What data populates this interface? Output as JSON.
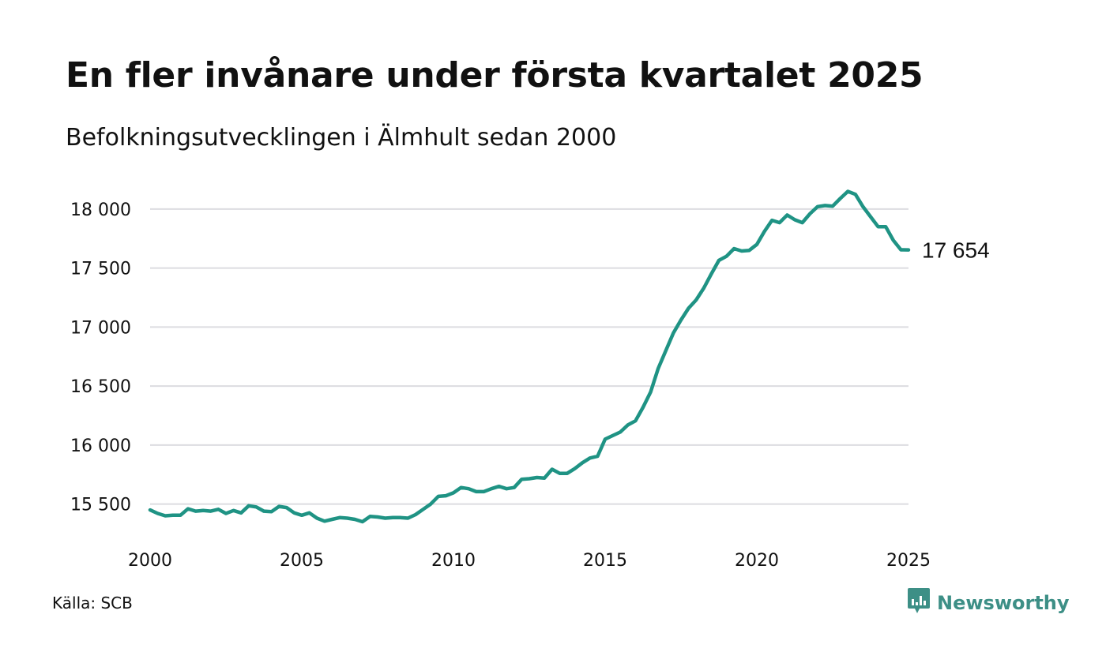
{
  "header": {
    "title": "En fler invånare under första kvartalet 2025",
    "subtitle": "Befolkningsutvecklingen i Älmhult sedan 2000"
  },
  "footer": {
    "source": "Källa: SCB",
    "brand": "Newsworthy",
    "brand_icon": "bar-chart-speech-bubble-icon"
  },
  "colors": {
    "line": "#1f9384",
    "grid": "#dcdce0",
    "brand": "#3d8f86"
  },
  "chart_data": {
    "type": "line",
    "title": "En fler invånare under första kvartalet 2025",
    "subtitle": "Befolkningsutvecklingen i Älmhult sedan 2000",
    "xlabel": "",
    "ylabel": "",
    "xlim": [
      2000,
      2025
    ],
    "ylim": [
      15330,
      18180
    ],
    "x_ticks": [
      2000,
      2005,
      2010,
      2015,
      2020,
      2025
    ],
    "x_tick_labels": [
      "2000",
      "2005",
      "2010",
      "2015",
      "2020",
      "2025"
    ],
    "y_ticks": [
      15500,
      16000,
      16500,
      17000,
      17500,
      18000
    ],
    "y_tick_labels": [
      "15 500",
      "16 000",
      "16 500",
      "17 000",
      "17 500",
      "18 000"
    ],
    "grid": "horizontal",
    "end_label": "17 654",
    "series": [
      {
        "x": [
          2000.0,
          2000.25,
          2000.5,
          2000.75,
          2001.0,
          2001.25,
          2001.5,
          2001.75,
          2002.0,
          2002.25,
          2002.5,
          2002.75,
          2003.0,
          2003.25,
          2003.5,
          2003.75,
          2004.0,
          2004.25,
          2004.5,
          2004.75,
          2005.0,
          2005.25,
          2005.5,
          2005.75,
          2006.0,
          2006.25,
          2006.5,
          2006.75,
          2007.0,
          2007.25,
          2007.5,
          2007.75,
          2008.0,
          2008.25,
          2008.5,
          2008.75,
          2009.0,
          2009.25,
          2009.5,
          2009.75,
          2010.0,
          2010.25,
          2010.5,
          2010.75,
          2011.0,
          2011.25,
          2011.5,
          2011.75,
          2012.0,
          2012.25,
          2012.5,
          2012.75,
          2013.0,
          2013.25,
          2013.5,
          2013.75,
          2014.0,
          2014.25,
          2014.5,
          2014.75,
          2015.0,
          2015.25,
          2015.5,
          2015.75,
          2016.0,
          2016.25,
          2016.5,
          2016.75,
          2017.0,
          2017.25,
          2017.5,
          2017.75,
          2018.0,
          2018.25,
          2018.5,
          2018.75,
          2019.0,
          2019.25,
          2019.5,
          2019.75,
          2020.0,
          2020.25,
          2020.5,
          2020.75,
          2021.0,
          2021.25,
          2021.5,
          2021.75,
          2022.0,
          2022.25,
          2022.5,
          2022.75,
          2023.0,
          2023.25,
          2023.5,
          2023.75,
          2024.0,
          2024.25,
          2024.5,
          2024.75,
          2025.0
        ],
        "values": [
          15450,
          15420,
          15400,
          15405,
          15405,
          15460,
          15440,
          15445,
          15440,
          15455,
          15420,
          15445,
          15425,
          15485,
          15475,
          15440,
          15435,
          15480,
          15470,
          15425,
          15405,
          15425,
          15380,
          15355,
          15370,
          15385,
          15380,
          15370,
          15350,
          15395,
          15390,
          15380,
          15385,
          15385,
          15380,
          15410,
          15455,
          15500,
          15565,
          15570,
          15595,
          15640,
          15630,
          15605,
          15605,
          15630,
          15650,
          15630,
          15640,
          15710,
          15715,
          15725,
          15720,
          15795,
          15760,
          15760,
          15800,
          15850,
          15890,
          15905,
          16050,
          16080,
          16110,
          16170,
          16205,
          16320,
          16450,
          16650,
          16800,
          16950,
          17060,
          17160,
          17230,
          17330,
          17450,
          17565,
          17600,
          17665,
          17645,
          17650,
          17700,
          17810,
          17905,
          17885,
          17950,
          17910,
          17885,
          17960,
          18020,
          18030,
          18025,
          18090,
          18150,
          18125,
          18020,
          17935,
          17850,
          17850,
          17735,
          17655,
          17654
        ]
      }
    ]
  }
}
